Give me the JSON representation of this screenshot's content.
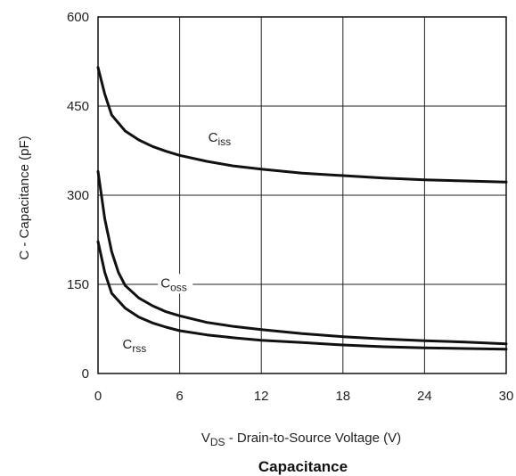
{
  "chart_data": {
    "type": "line",
    "title": "Capacitance",
    "xlabel": {
      "main": "V",
      "sub": "DS",
      "rest": " - Drain-to-Source Voltage (V)"
    },
    "ylabel": "C - Capacitance (pF)",
    "xlim": [
      0,
      30
    ],
    "ylim": [
      0,
      600
    ],
    "xticks": [
      0,
      6,
      12,
      18,
      24,
      30
    ],
    "yticks": [
      0,
      150,
      300,
      450,
      600
    ],
    "grid": true,
    "line_color": "#111111",
    "series": [
      {
        "name": "Ciss",
        "label_main": "C",
        "label_sub": "iss",
        "label_at": [
          8.1,
          390
        ],
        "points": [
          [
            0,
            515
          ],
          [
            0.5,
            470
          ],
          [
            1,
            435
          ],
          [
            2,
            408
          ],
          [
            3,
            393
          ],
          [
            4,
            382
          ],
          [
            5,
            374
          ],
          [
            6,
            367
          ],
          [
            8,
            357
          ],
          [
            10,
            349
          ],
          [
            12,
            344
          ],
          [
            15,
            337
          ],
          [
            18,
            333
          ],
          [
            21,
            329
          ],
          [
            24,
            326
          ],
          [
            27,
            324
          ],
          [
            30,
            322
          ]
        ]
      },
      {
        "name": "Coss",
        "label_main": "C",
        "label_sub": "oss",
        "label_at": [
          4.6,
          145
        ],
        "points": [
          [
            0,
            340
          ],
          [
            0.5,
            260
          ],
          [
            1,
            205
          ],
          [
            1.5,
            170
          ],
          [
            2,
            148
          ],
          [
            3,
            127
          ],
          [
            4,
            114
          ],
          [
            5,
            104
          ],
          [
            6,
            97
          ],
          [
            8,
            86
          ],
          [
            10,
            79
          ],
          [
            12,
            74
          ],
          [
            15,
            67
          ],
          [
            18,
            62
          ],
          [
            21,
            58
          ],
          [
            24,
            55
          ],
          [
            27,
            53
          ],
          [
            30,
            50
          ]
        ]
      },
      {
        "name": "Crss",
        "label_main": "C",
        "label_sub": "rss",
        "label_at": [
          1.8,
          42
        ],
        "points": [
          [
            0,
            222
          ],
          [
            0.5,
            170
          ],
          [
            1,
            135
          ],
          [
            2,
            110
          ],
          [
            3,
            95
          ],
          [
            4,
            85
          ],
          [
            5,
            78
          ],
          [
            6,
            72
          ],
          [
            8,
            65
          ],
          [
            10,
            60
          ],
          [
            12,
            56
          ],
          [
            15,
            52
          ],
          [
            18,
            48
          ],
          [
            21,
            45
          ],
          [
            24,
            43
          ],
          [
            27,
            42
          ],
          [
            30,
            41
          ]
        ]
      }
    ]
  }
}
